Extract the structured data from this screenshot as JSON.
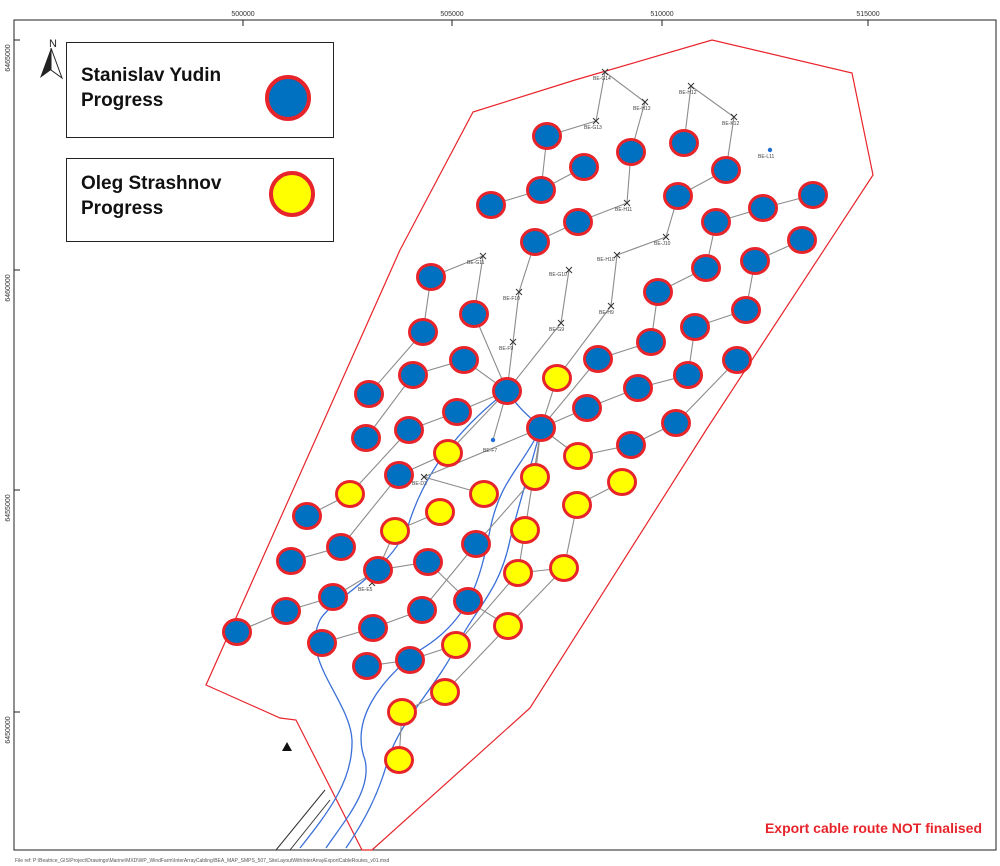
{
  "map": {
    "x_ticks": [
      "500000",
      "505000",
      "510000",
      "515000"
    ],
    "y_ticks": [
      "6465000",
      "6460000",
      "6455000",
      "6450000"
    ],
    "north_label": "N",
    "notice": "Export cable route NOT finalised",
    "file_path": "File ref: P:\\Beatrice_GIS\\Project\\Drawings\\Marine\\MXD\\WP_WindFarm\\InterArrayCabling\\BEA_MAP_SMPS_507_SiteLayoutWithInterArrayExportCableRoutes_v01.mxd",
    "colors": {
      "blue": "#0070c0",
      "yellow": "#ffff00",
      "outline": "#e8242b",
      "cable": "#8c8c8c",
      "export_cable": "#3a6fd8"
    },
    "legend": [
      {
        "label": "Stanislav Yudin\nProgress",
        "fill": "#0070c0"
      },
      {
        "label": "Oleg Strashnov\nProgress",
        "fill": "#ffff00"
      }
    ],
    "pending_labels": [
      "BE-G14",
      "BE-G13",
      "BE-H13",
      "BE-H12",
      "BE-K12",
      "BE-L11",
      "BE-G11",
      "BE-H11",
      "BE-J10",
      "BE-G10",
      "BE-H10",
      "BE-F10",
      "BE-G9",
      "BE-H9",
      "BE-F9",
      "BE-F7",
      "BE-E5",
      "BE-D3"
    ]
  }
}
